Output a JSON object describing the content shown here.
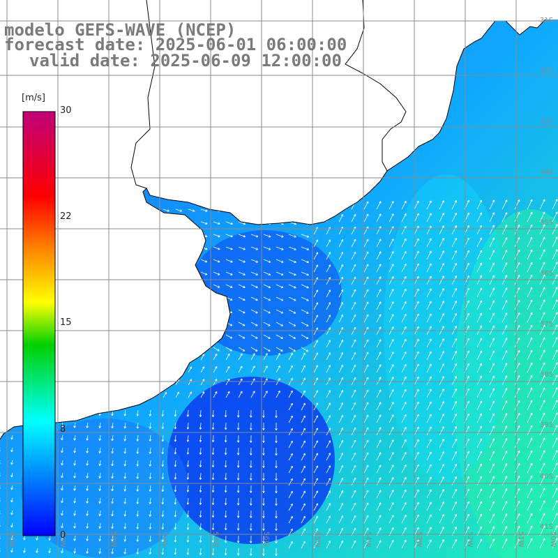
{
  "title": {
    "line1": "modelo GEFS-WAVE (NCEP)",
    "line2": "forecast date: 2025-06-01 06:00:00",
    "line3": "valid date: 2025-06-09 12:00:00"
  },
  "colorbar": {
    "unit": "[m/s]",
    "ticks": [
      "30",
      "22",
      "15",
      "8",
      "0"
    ],
    "colors": [
      "#c0007a",
      "#ff0000",
      "#ff8000",
      "#ffff00",
      "#00d000",
      "#00ffff",
      "#0000ff"
    ]
  },
  "map": {
    "lat_labels": [
      "31S",
      "32S",
      "33S",
      "34S",
      "35S",
      "36S",
      "37S",
      "38S",
      "39S",
      "40S",
      "41S"
    ],
    "lon_labels": [
      "61W",
      "60W",
      "59W",
      "58W",
      "57W",
      "56W",
      "55W",
      "54W",
      "53W",
      "52W",
      "51W",
      "50W"
    ],
    "wind_field": "wind-speed-arrows",
    "land_color": "#ffffff",
    "grid_color": "#8a8a8a"
  }
}
